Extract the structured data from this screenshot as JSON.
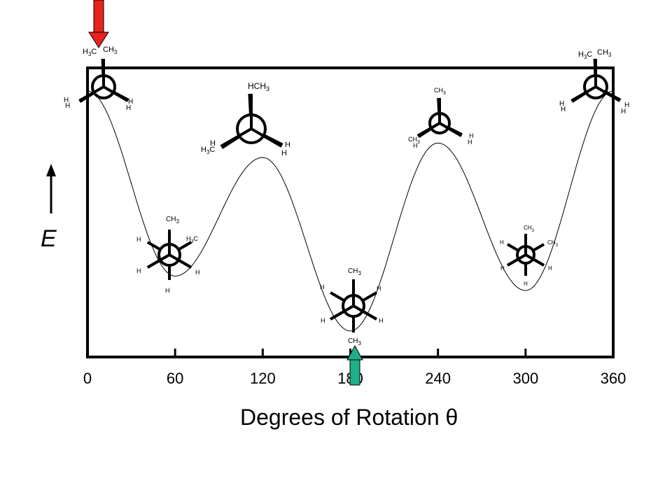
{
  "chart_data": {
    "type": "line",
    "title": "",
    "xlabel": "Degrees of Rotation",
    "xlabel_symbol": "θ",
    "ylabel": "E",
    "xlim": [
      0,
      360
    ],
    "ylim": [
      0,
      10
    ],
    "xticks": [
      0,
      60,
      120,
      180,
      240,
      300,
      360
    ],
    "xtick_labels": [
      "0",
      "60",
      "120",
      "180",
      "240",
      "300",
      "360"
    ],
    "grid": false,
    "series": [
      {
        "x": [
          0,
          60,
          120,
          180,
          240,
          300,
          360
        ],
        "y": [
          9.2,
          2.8,
          6.9,
          0.9,
          7.4,
          2.3,
          9.2
        ]
      }
    ],
    "arrows": [
      {
        "x": 0,
        "direction": "down",
        "color": "#e8231c"
      },
      {
        "x": 180,
        "direction": "up",
        "color": "#1fae8a"
      }
    ],
    "labels": {
      "ch3": "CH",
      "h3c": "H",
      "hch3": "HCH",
      "sub3": "3",
      "c": "C",
      "h": "H"
    }
  }
}
